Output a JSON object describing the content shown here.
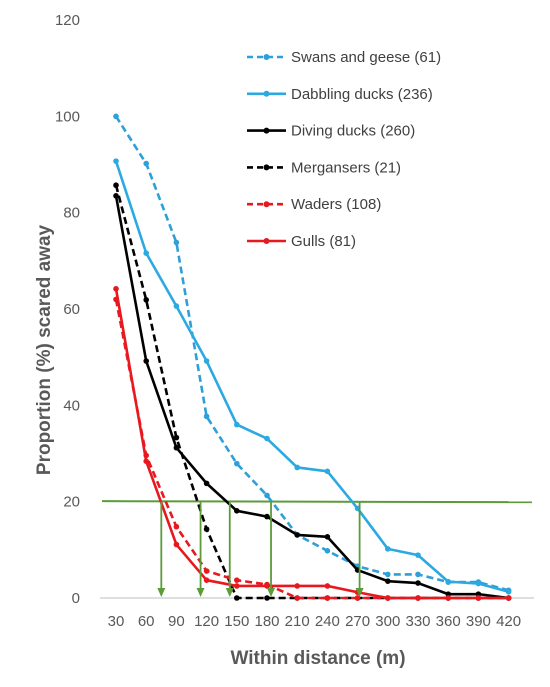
{
  "chart_data": {
    "type": "line",
    "xlabel": "Within distance (m)",
    "ylabel": "Proportion (%) scared away",
    "categories": [
      "30",
      "60",
      "90",
      "120",
      "150",
      "180",
      "210",
      "240",
      "270",
      "300",
      "330",
      "360",
      "390",
      "420"
    ],
    "ylim": [
      0,
      120
    ],
    "yticks": [
      "0",
      "20",
      "40",
      "60",
      "80",
      "100",
      "120"
    ],
    "grid": false,
    "legend_position": "top-right",
    "threshold": {
      "y": 20,
      "color": "#5B9B3A"
    },
    "arrows_x_m": [
      75,
      114,
      143,
      184,
      272
    ],
    "series": [
      {
        "name": "Swans and geese (61)",
        "color": "#2E9FD8",
        "dash": true,
        "values": [
          100,
          90.2,
          73.8,
          37.7,
          27.9,
          21.3,
          13.1,
          9.8,
          6.6,
          4.9,
          4.9,
          3.3,
          3.3,
          1.6
        ]
      },
      {
        "name": "Dabbling ducks (236)",
        "color": "#2BA9E0",
        "dash": false,
        "values": [
          90.7,
          71.6,
          60.6,
          49.2,
          36.0,
          33.1,
          27.1,
          26.3,
          18.6,
          10.2,
          8.9,
          3.4,
          3.0,
          1.3
        ]
      },
      {
        "name": "Diving ducks (260)",
        "color": "#000000",
        "dash": false,
        "values": [
          83.5,
          49.2,
          31.2,
          23.8,
          18.1,
          16.9,
          13.1,
          12.7,
          5.8,
          3.5,
          3.1,
          0.8,
          0.8,
          0
        ]
      },
      {
        "name": "Mergansers (21)",
        "color": "#000000",
        "dash": true,
        "values": [
          85.7,
          61.9,
          33.3,
          14.3,
          0,
          0,
          0,
          0,
          0,
          0,
          0,
          0,
          0,
          0
        ]
      },
      {
        "name": "Waders (108)",
        "color": "#E8191E",
        "dash": true,
        "values": [
          62.0,
          29.6,
          14.8,
          5.6,
          3.7,
          2.8,
          0,
          0,
          0,
          0,
          0,
          0,
          0,
          0
        ]
      },
      {
        "name": "Gulls (81)",
        "color": "#E8191E",
        "dash": false,
        "values": [
          64.2,
          28.4,
          11.1,
          3.7,
          2.5,
          2.5,
          2.5,
          2.5,
          1.2,
          0,
          0,
          0,
          0,
          0
        ]
      }
    ]
  }
}
